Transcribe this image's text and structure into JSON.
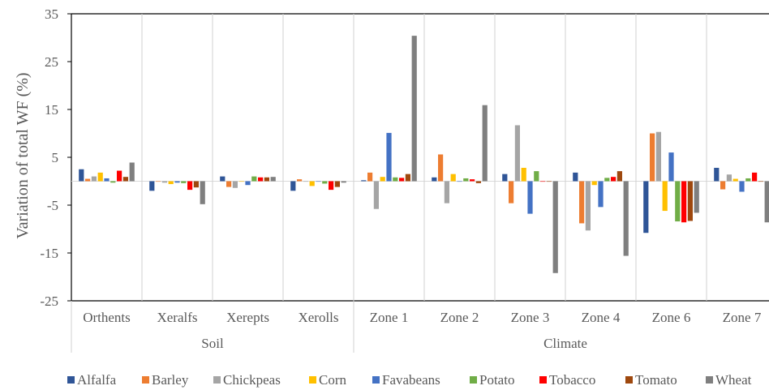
{
  "chart_data": {
    "type": "bar",
    "title": "",
    "xlabel": "",
    "ylabel": "Variation of total WF (%)",
    "ylim": [
      -25,
      35
    ],
    "yticks": [
      -25,
      -15,
      -5,
      5,
      15,
      25,
      35
    ],
    "grid": "vertical separators between categories",
    "legend_position": "bottom",
    "categories": [
      "Orthents",
      "Xeralfs",
      "Xerepts",
      "Xerolls",
      "Zone 1",
      "Zone 2",
      "Zone 3",
      "Zone 4",
      "Zone 6",
      "Zone 7"
    ],
    "groups": [
      {
        "label": "Soil",
        "categories": [
          "Orthents",
          "Xeralfs",
          "Xerepts",
          "Xerolls"
        ]
      },
      {
        "label": "Climate",
        "categories": [
          "Zone 1",
          "Zone 2",
          "Zone 3",
          "Zone 4",
          "Zone 6",
          "Zone 7"
        ]
      }
    ],
    "series": [
      {
        "name": "Alfalfa",
        "color": "#2F5597",
        "values": [
          2.5,
          -2.0,
          1.0,
          -2.0,
          0.2,
          0.8,
          1.5,
          1.8,
          -10.8,
          2.8
        ]
      },
      {
        "name": "Barley",
        "color": "#ED7D31",
        "values": [
          0.5,
          0.0,
          -1.2,
          0.4,
          1.8,
          5.6,
          -4.6,
          -8.8,
          10.0,
          -1.7
        ]
      },
      {
        "name": "Chickpeas",
        "color": "#A5A5A5",
        "values": [
          1.0,
          -0.3,
          -1.4,
          0.0,
          -5.8,
          -4.6,
          11.7,
          -10.3,
          10.3,
          1.4
        ]
      },
      {
        "name": "Corn",
        "color": "#FFC000",
        "values": [
          1.8,
          -0.6,
          0.0,
          -1.0,
          0.9,
          1.5,
          2.8,
          -0.8,
          -6.2,
          0.5
        ]
      },
      {
        "name": "Favabeans",
        "color": "#4472C4",
        "values": [
          0.6,
          -0.3,
          -0.8,
          0.0,
          10.1,
          0.0,
          -6.8,
          -5.4,
          6.0,
          -2.2
        ]
      },
      {
        "name": "Potato",
        "color": "#70AD47",
        "values": [
          -0.3,
          -0.4,
          1.0,
          -0.5,
          0.8,
          0.6,
          2.1,
          0.7,
          -8.4,
          0.6
        ]
      },
      {
        "name": "Tobacco",
        "color": "#FF0000",
        "values": [
          2.2,
          -1.8,
          0.8,
          -1.8,
          0.7,
          0.4,
          0.0,
          0.9,
          -8.6,
          1.8
        ]
      },
      {
        "name": "Tomato",
        "color": "#9E480E",
        "values": [
          0.9,
          -1.3,
          0.8,
          -1.2,
          1.5,
          -0.4,
          0.0,
          2.1,
          -8.3,
          0.0
        ]
      },
      {
        "name": "Wheat",
        "color": "#7F7F7F",
        "values": [
          3.9,
          -4.8,
          0.9,
          -0.3,
          30.4,
          15.9,
          -19.2,
          -15.6,
          -6.6,
          -8.6
        ]
      }
    ]
  }
}
